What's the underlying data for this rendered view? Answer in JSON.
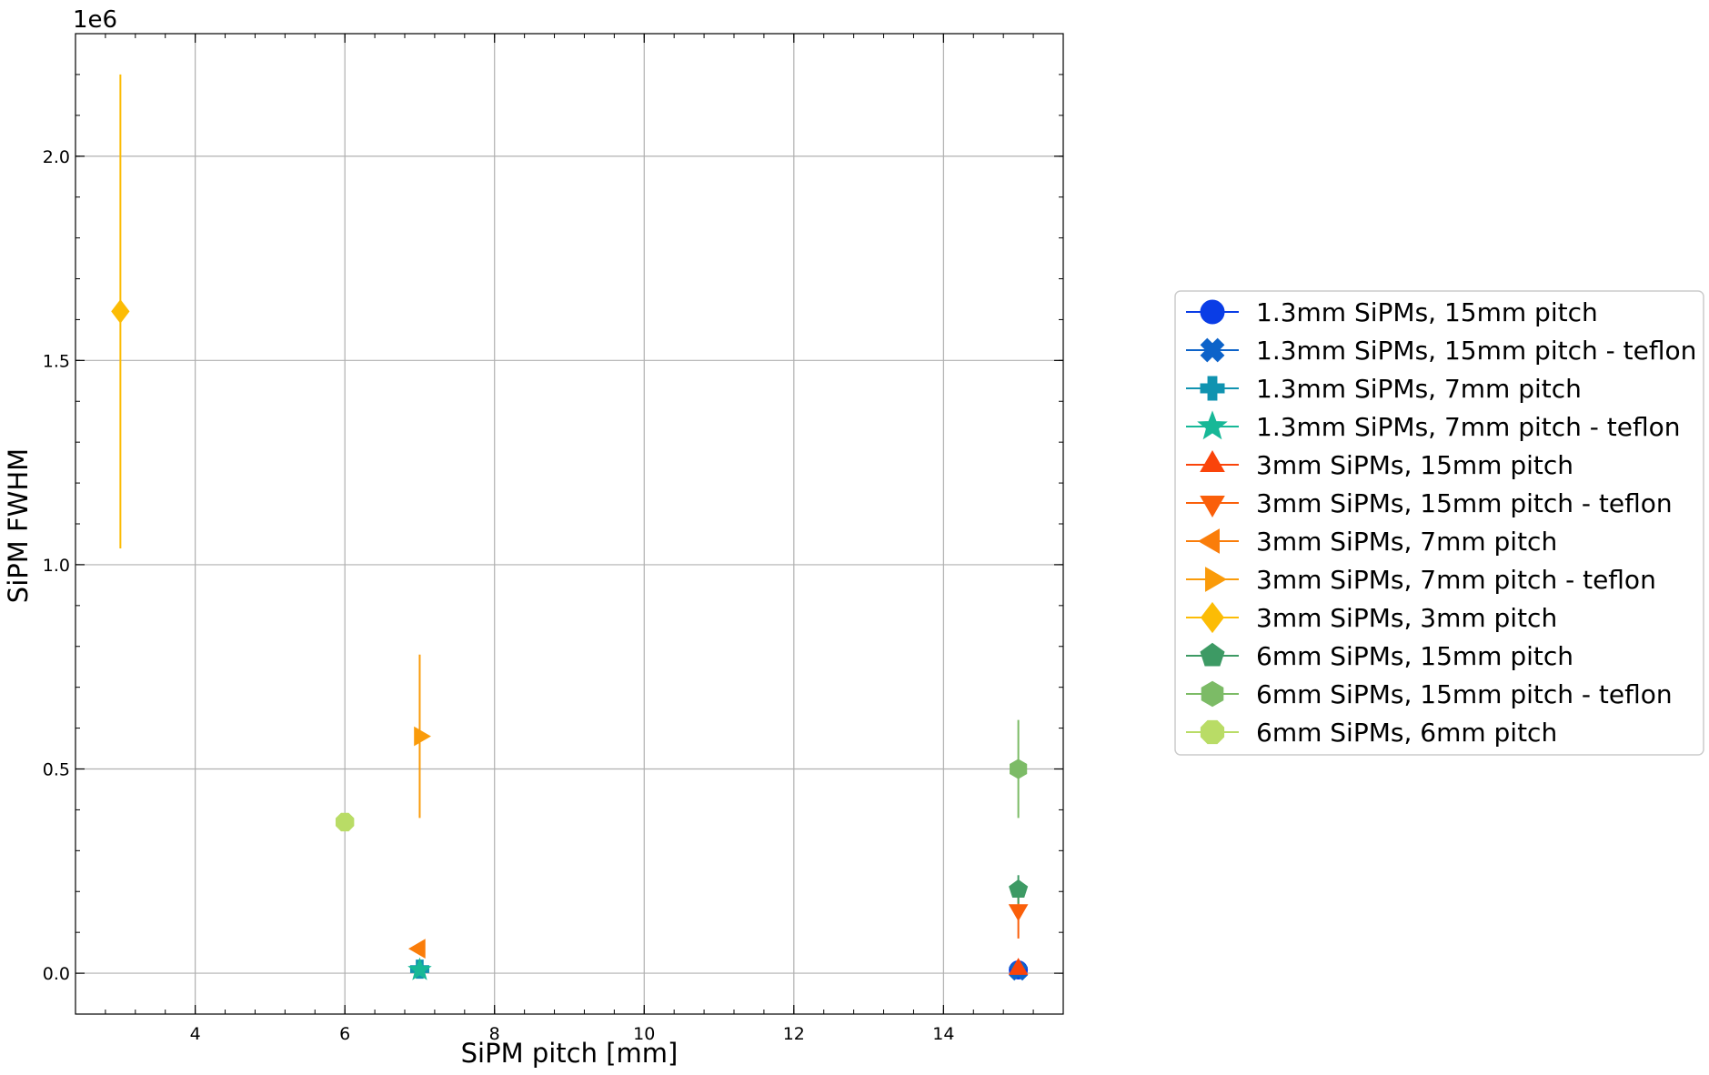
{
  "chart_data": {
    "type": "scatter",
    "title": "",
    "xlabel": "SiPM pitch [mm]",
    "ylabel": "SiPM FWHM",
    "y_offset_label": "1e6",
    "xlim": [
      2.4,
      15.6
    ],
    "ylim": [
      -0.1,
      2.3
    ],
    "x_ticks": [
      4,
      6,
      8,
      10,
      12,
      14
    ],
    "y_ticks": [
      0.0,
      0.5,
      1.0,
      1.5,
      2.0
    ],
    "x_tick_labels": [
      "4",
      "6",
      "8",
      "10",
      "12",
      "14"
    ],
    "y_tick_labels": [
      "0.0",
      "0.5",
      "1.0",
      "1.5",
      "2.0"
    ],
    "grid": true,
    "legend_position": "outside-right",
    "series": [
      {
        "name": "1.3mm SiPMs, 15mm pitch",
        "color": "#0a3de6",
        "marker": "circle",
        "points": [
          {
            "x": 15,
            "y": 0.008,
            "err": 0.004
          }
        ]
      },
      {
        "name": "1.3mm SiPMs, 15mm pitch - teflon",
        "color": "#0d63c9",
        "marker": "x-filled",
        "points": [
          {
            "x": 15,
            "y": 0.005,
            "err": 0.003
          }
        ]
      },
      {
        "name": "1.3mm SiPMs, 7mm pitch",
        "color": "#1093b0",
        "marker": "plus-filled",
        "points": [
          {
            "x": 7,
            "y": 0.01,
            "err": 0.004
          }
        ]
      },
      {
        "name": "1.3mm SiPMs, 7mm pitch - teflon",
        "color": "#17b897",
        "marker": "star",
        "points": [
          {
            "x": 7,
            "y": 0.008,
            "err": 0.003
          }
        ]
      },
      {
        "name": "3mm SiPMs, 15mm pitch",
        "color": "#fa440a",
        "marker": "triangle-up",
        "points": [
          {
            "x": 15,
            "y": 0.01,
            "err": 0.005
          }
        ]
      },
      {
        "name": "3mm SiPMs, 15mm pitch - teflon",
        "color": "#fa5f0a",
        "marker": "triangle-down",
        "points": [
          {
            "x": 15,
            "y": 0.155,
            "err": 0.07
          }
        ]
      },
      {
        "name": "3mm SiPMs, 7mm pitch",
        "color": "#fa7d0a",
        "marker": "triangle-left",
        "points": [
          {
            "x": 7,
            "y": 0.06,
            "err": 0.005
          }
        ]
      },
      {
        "name": "3mm SiPMs, 7mm pitch - teflon",
        "color": "#fa9b0a",
        "marker": "triangle-right",
        "points": [
          {
            "x": 7,
            "y": 0.58,
            "err": 0.2
          }
        ]
      },
      {
        "name": "3mm SiPMs, 3mm pitch",
        "color": "#fcbc05",
        "marker": "diamond",
        "points": [
          {
            "x": 3,
            "y": 1.62,
            "err": 0.58
          }
        ]
      },
      {
        "name": "6mm SiPMs, 15mm pitch",
        "color": "#3d9a64",
        "marker": "pentagon",
        "points": [
          {
            "x": 15,
            "y": 0.205,
            "err": 0.035
          }
        ]
      },
      {
        "name": "6mm SiPMs, 15mm pitch - teflon",
        "color": "#7cbb66",
        "marker": "hexagon",
        "points": [
          {
            "x": 15,
            "y": 0.5,
            "err": 0.12
          }
        ]
      },
      {
        "name": "6mm SiPMs, 6mm pitch",
        "color": "#b9dc66",
        "marker": "octagon",
        "points": [
          {
            "x": 6,
            "y": 0.37,
            "err": 0.01
          }
        ]
      }
    ]
  }
}
